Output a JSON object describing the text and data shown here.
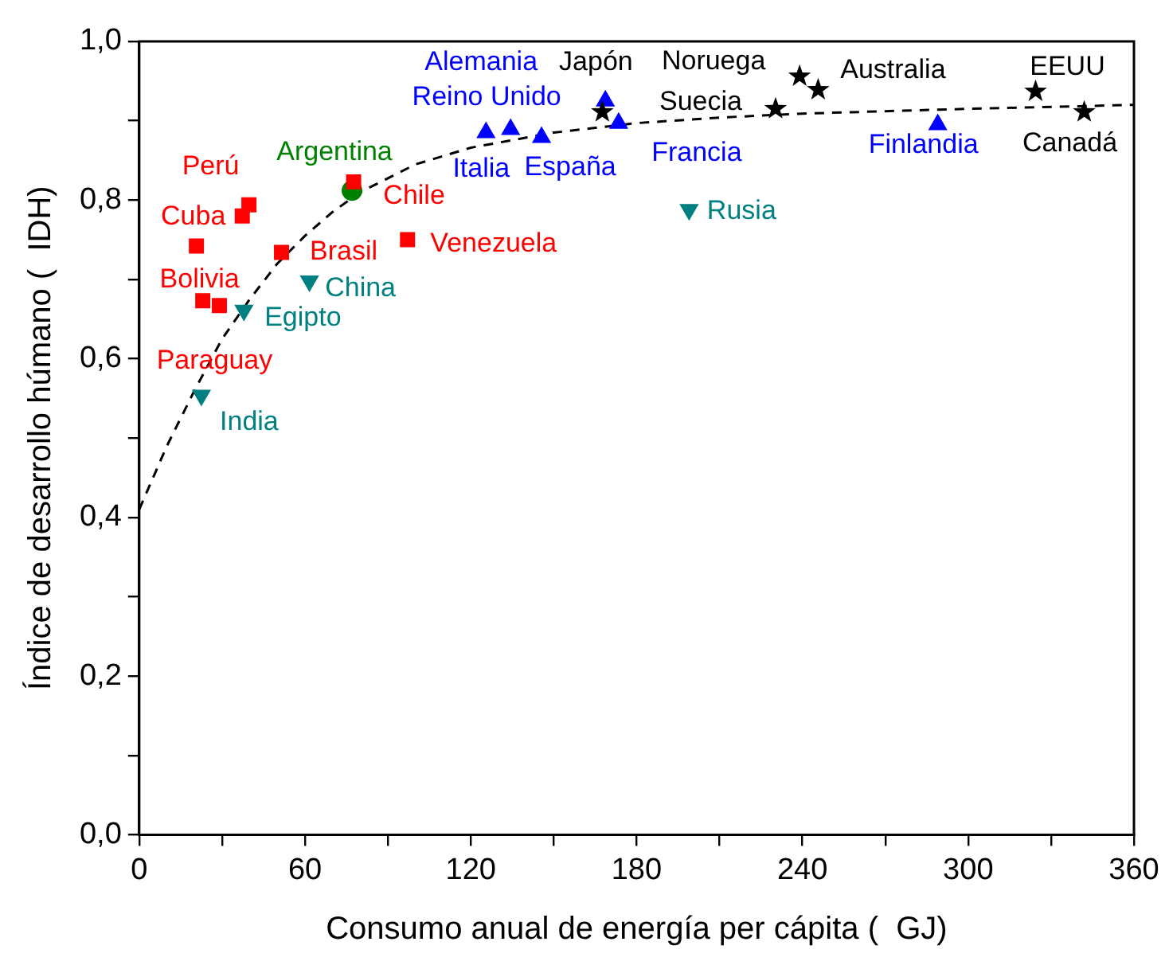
{
  "chart_data": {
    "type": "scatter",
    "xlabel": "Consumo anual de energía per cápita (  GJ)",
    "ylabel": "Índice de desarrollo húmano (  IDH)",
    "xlim": [
      0,
      360
    ],
    "ylim": [
      0,
      1
    ],
    "xticks": [
      0,
      {
        "value": 30,
        "label": null
      },
      60,
      {
        "value": 90,
        "label": null
      },
      120,
      {
        "value": 150,
        "label": null
      },
      180,
      {
        "value": 210,
        "label": null
      },
      240,
      {
        "value": 270,
        "label": null
      },
      300,
      {
        "value": 330,
        "label": null
      },
      360
    ],
    "yticks": [
      {
        "value": 0,
        "label": "0,0"
      },
      {
        "value": 0.1,
        "label": null
      },
      {
        "value": 0.2,
        "label": "0,2"
      },
      {
        "value": 0.3,
        "label": null
      },
      {
        "value": 0.4,
        "label": "0,4"
      },
      {
        "value": 0.5,
        "label": null
      },
      {
        "value": 0.6,
        "label": "0,6"
      },
      {
        "value": 0.7,
        "label": null
      },
      {
        "value": 0.8,
        "label": "0,8"
      },
      {
        "value": 0.9,
        "label": null
      },
      {
        "value": 1.0,
        "label": "1,0"
      }
    ],
    "grid": false,
    "legend": false,
    "series": [
      {
        "color": "#ff0000",
        "marker": "square",
        "x": [
          20.7,
          37.3,
          39.7,
          23,
          29,
          51.5,
          77.6,
          97.1
        ],
        "values": [
          0.742,
          0.78,
          0.794,
          0.673,
          0.667,
          0.734,
          0.823,
          0.75
        ]
      },
      {
        "color": "#008000",
        "marker": "circle",
        "x": [
          77
        ],
        "values": [
          0.812
        ]
      },
      {
        "color": "#008080",
        "marker": "triangle_down",
        "x": [
          22.5,
          37.9,
          61.6,
          199
        ],
        "values": [
          0.554,
          0.661,
          0.698,
          0.788
        ]
      },
      {
        "color": "#0000ff",
        "marker": "triangle",
        "x": [
          125.5,
          134.4,
          145.6,
          168.7,
          173.5,
          289
        ],
        "values": [
          0.885,
          0.889,
          0.879,
          0.925,
          0.897,
          0.895
        ]
      },
      {
        "color": "#000000",
        "marker": "star",
        "x": [
          167.6,
          230.3,
          239,
          245.7,
          324.4,
          342
        ],
        "values": [
          0.911,
          0.915,
          0.956,
          0.939,
          0.937,
          0.911
        ]
      },
      {
        "type": "line",
        "color": "#000000",
        "marker": "none",
        "line_style": "dashed",
        "x": [
          0,
          10,
          20,
          30,
          40,
          50,
          60,
          70,
          80,
          100,
          120,
          150,
          180,
          210,
          240,
          300,
          360
        ],
        "values": [
          0.41,
          0.49,
          0.56,
          0.625,
          0.675,
          0.72,
          0.755,
          0.785,
          0.81,
          0.845,
          0.866,
          0.885,
          0.897,
          0.904,
          0.909,
          0.915,
          0.92
        ]
      }
    ],
    "annotations": [
      {
        "text": "Perú",
        "x": 39.7,
        "y": 0.794
      },
      {
        "text": "Cuba",
        "x": 20.7,
        "y": 0.742
      },
      {
        "text": "Bolivia",
        "x": 23,
        "y": 0.673
      },
      {
        "text": "Paraguay",
        "x": 29,
        "y": 0.667
      },
      {
        "text": "Brasil",
        "x": 51.5,
        "y": 0.734
      },
      {
        "text": "Chile",
        "x": 77.6,
        "y": 0.823
      },
      {
        "text": "Venezuela",
        "x": 97.1,
        "y": 0.75
      },
      {
        "text": "Argentina",
        "x": 77,
        "y": 0.812
      },
      {
        "text": "India",
        "x": 22.5,
        "y": 0.554
      },
      {
        "text": "Egipto",
        "x": 37.9,
        "y": 0.661
      },
      {
        "text": "China",
        "x": 61.6,
        "y": 0.698
      },
      {
        "text": "Rusia",
        "x": 199,
        "y": 0.788
      },
      {
        "text": "Italia",
        "x": 125.5,
        "y": 0.885
      },
      {
        "text": "Reino Unido",
        "x": 134.4,
        "y": 0.889
      },
      {
        "text": "España",
        "x": 145.6,
        "y": 0.879
      },
      {
        "text": "Alemania",
        "x": 168.7,
        "y": 0.925
      },
      {
        "text": "Francia",
        "x": 173.5,
        "y": 0.897
      },
      {
        "text": "Finlandia",
        "x": 289,
        "y": 0.895
      },
      {
        "text": "Japón",
        "x": 167.6,
        "y": 0.911
      },
      {
        "text": "Suecia",
        "x": 230.3,
        "y": 0.915
      },
      {
        "text": "Noruega",
        "x": 239,
        "y": 0.956
      },
      {
        "text": "Australia",
        "x": 245.7,
        "y": 0.939
      },
      {
        "text": "EEUU",
        "x": 324.4,
        "y": 0.937
      },
      {
        "text": "Canadá",
        "x": 342,
        "y": 0.911
      }
    ]
  }
}
